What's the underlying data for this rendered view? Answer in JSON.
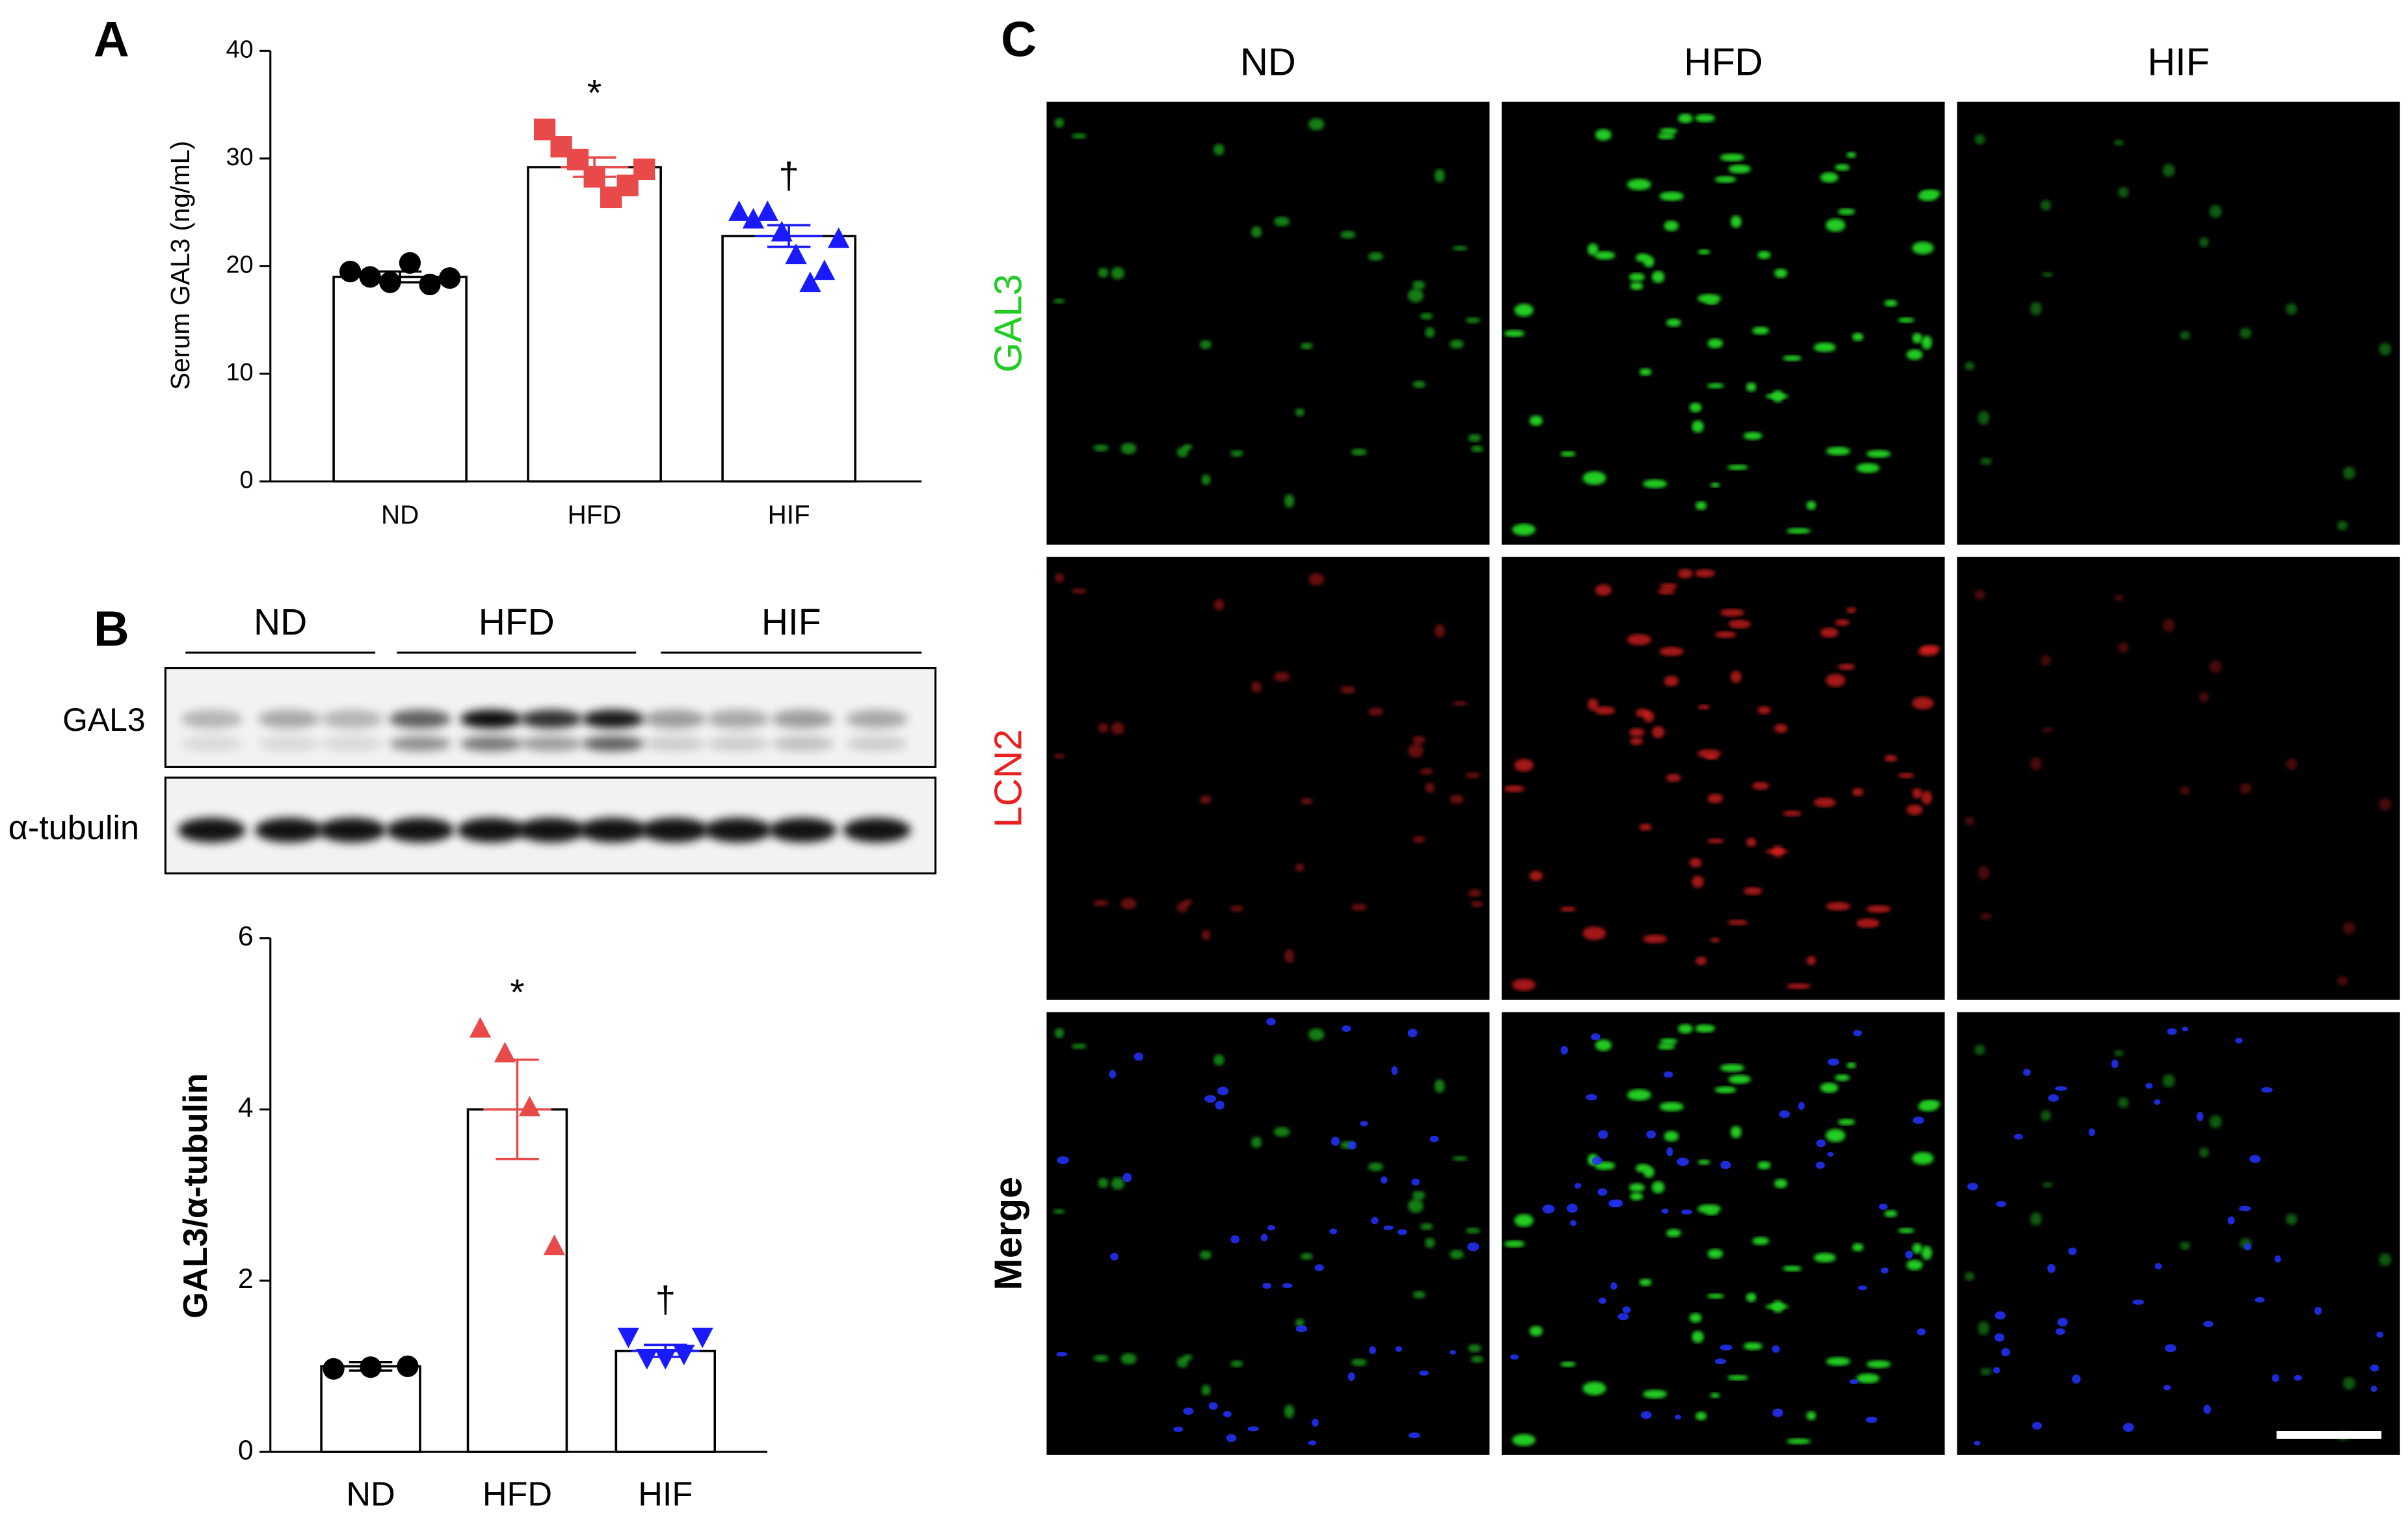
{
  "panel_labels": [
    "A",
    "B",
    "C"
  ],
  "chart_data": [
    {
      "type": "bar",
      "categories": [
        "ND",
        "HFD",
        "HIF"
      ],
      "values": [
        19,
        29.2,
        22.8
      ],
      "errors": [
        0.5,
        0.9,
        1.0
      ],
      "points": [
        [
          19.5,
          19,
          18.5,
          20.3,
          18.3,
          18.9
        ],
        [
          32.7,
          31.1,
          29.9,
          28.3,
          26.4,
          27.5,
          29
        ],
        [
          25,
          24.3,
          25,
          23.1,
          21,
          18.4,
          19.5,
          22.5
        ]
      ],
      "point_colors": [
        "#000000",
        "#e84a4a",
        "#1a1aff"
      ],
      "point_markers": [
        "circle",
        "square",
        "triangle"
      ],
      "bar_color": "#ffffff",
      "ylabel": "Serum GAL3 (ng/mL)",
      "ylim": [
        0,
        40
      ],
      "yticks": [
        0,
        10,
        20,
        30,
        40
      ],
      "annotations": [
        {
          "text": "*",
          "category": 1
        },
        {
          "text": "†",
          "category": 2
        }
      ]
    },
    {
      "type": "bar",
      "categories": [
        "ND",
        "HFD",
        "HIF"
      ],
      "values": [
        1.0,
        4.0,
        1.18
      ],
      "errors": [
        0.05,
        0.58,
        0.07
      ],
      "points": [
        [
          0.97,
          0.99,
          1.0
        ],
        [
          4.94,
          4.65,
          4.02,
          2.4
        ],
        [
          1.35,
          1.1,
          1.1,
          1.15,
          1.35
        ]
      ],
      "point_colors": [
        "#000000",
        "#e84a4a",
        "#1a1aff"
      ],
      "point_markers": [
        "circle",
        "triangle",
        "triangle-down"
      ],
      "bar_color": "#ffffff",
      "ylabel": "GAL3/α-tubulin",
      "ylim": [
        0,
        6
      ],
      "yticks": [
        0,
        2,
        4,
        6
      ],
      "annotations": [
        {
          "text": "*",
          "category": 1
        },
        {
          "text": "†",
          "category": 2
        }
      ]
    }
  ],
  "blot": {
    "groups": [
      "ND",
      "HFD",
      "HIF"
    ],
    "rows": [
      "GAL3",
      "α-tubulin"
    ]
  },
  "micrographs": {
    "columns": [
      "ND",
      "HFD",
      "HIF"
    ],
    "rows": [
      {
        "label": "GAL3",
        "color": "#22cc22"
      },
      {
        "label": "LCN2",
        "color": "#e82020"
      },
      {
        "label": "Merge",
        "color": "#000000"
      }
    ]
  }
}
